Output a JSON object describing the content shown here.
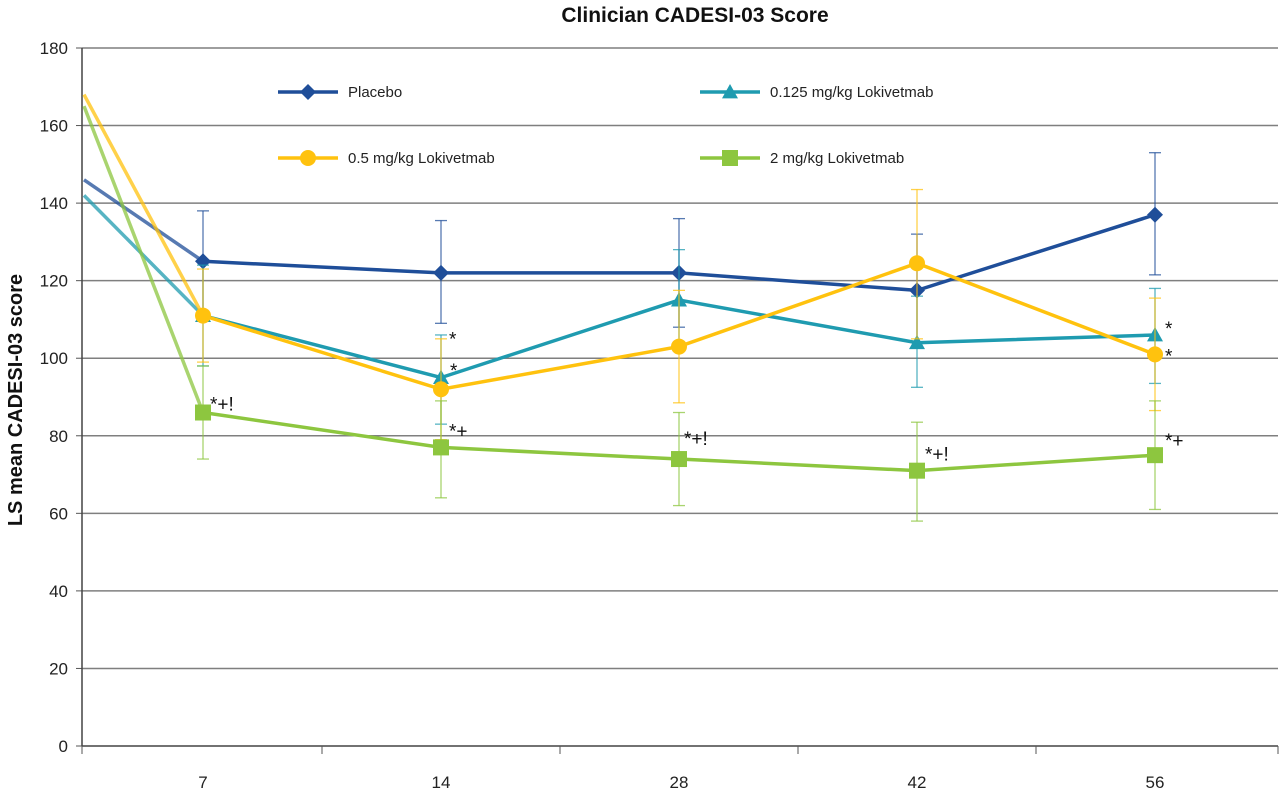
{
  "chart_data": {
    "type": "line",
    "title": "Clinician CADESI-03 Score",
    "xlabel": "",
    "ylabel": "LS mean CADESI-03 score",
    "categories": [
      "7",
      "14",
      "28",
      "42",
      "56"
    ],
    "ylim": [
      0,
      180
    ],
    "yticks": [
      0,
      20,
      40,
      60,
      80,
      100,
      120,
      140,
      160,
      180
    ],
    "grid": true,
    "legend_position": "top",
    "series": [
      {
        "name": "Placebo",
        "color": "#1f4e99",
        "marker": "diamond",
        "baseline": 146,
        "values": [
          125,
          122,
          122,
          117.5,
          137
        ],
        "error_upper": [
          138,
          135.5,
          136,
          132,
          153
        ],
        "error_lower": [
          111,
          109,
          108,
          103,
          121.5
        ],
        "annotations": [
          "",
          "",
          "",
          "",
          ""
        ]
      },
      {
        "name": "0.125 mg/kg Lokivetmab",
        "color": "#1f9bb0",
        "marker": "triangle",
        "baseline": 142,
        "values": [
          111,
          95,
          115,
          104,
          106
        ],
        "error_upper": [
          124,
          106,
          128,
          116,
          118
        ],
        "error_lower": [
          98,
          83,
          102,
          92.5,
          93.5
        ],
        "annotations": [
          "",
          "*",
          "",
          "",
          "*"
        ]
      },
      {
        "name": "0.5 mg/kg Lokivetmab",
        "color": "#ffc20e",
        "marker": "circle",
        "baseline": 168,
        "values": [
          111,
          92,
          103,
          124.5,
          101
        ],
        "error_upper": [
          123,
          105,
          117.5,
          143.5,
          115.5
        ],
        "error_lower": [
          99,
          79,
          88.5,
          105,
          86.5
        ],
        "annotations": [
          "",
          "*",
          "",
          "",
          "*"
        ]
      },
      {
        "name": "2 mg/kg Lokivetmab",
        "color": "#8dc63f",
        "marker": "square",
        "baseline": 165,
        "values": [
          86,
          77,
          74,
          71,
          75
        ],
        "error_upper": [
          98,
          89,
          86,
          83.5,
          89
        ],
        "error_lower": [
          74,
          64,
          62,
          58,
          61
        ],
        "annotations": [
          "*+!",
          "*+",
          "*+!",
          "*+!",
          "*+"
        ]
      }
    ]
  }
}
